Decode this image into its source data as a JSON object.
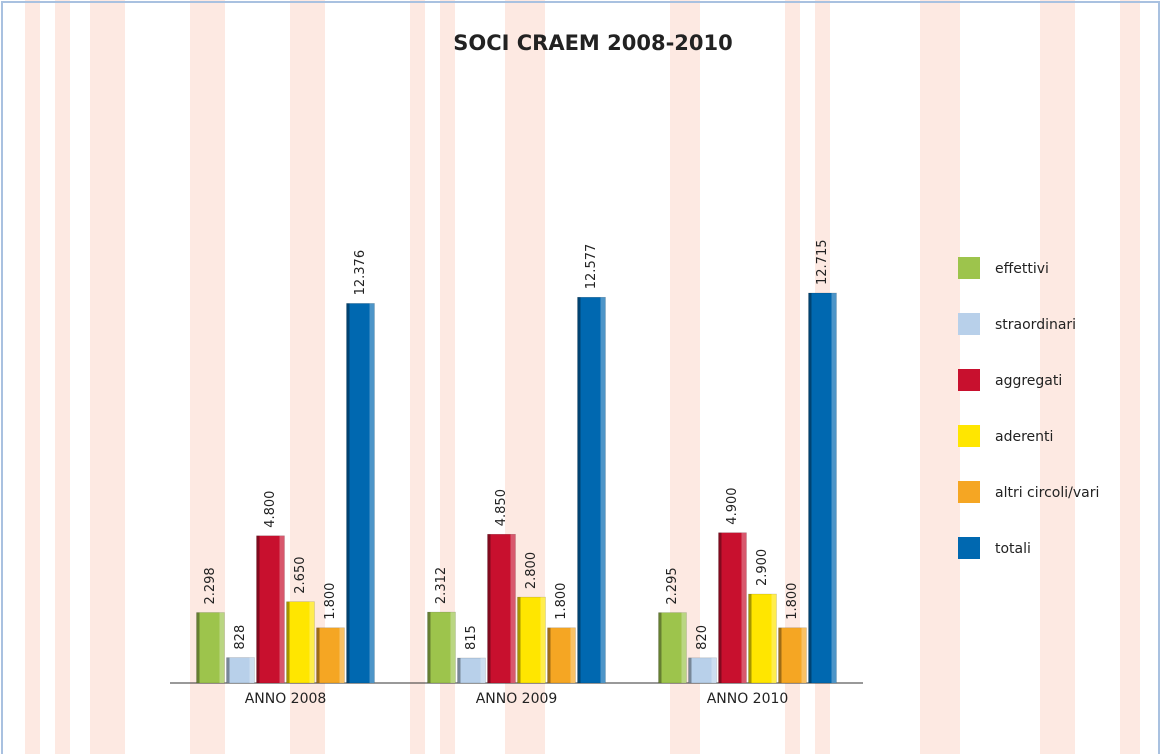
{
  "chart_data": {
    "type": "bar",
    "title": "SOCI CRAEM 2008-2010",
    "categories": [
      "ANNO 2008",
      "ANNO 2009",
      "ANNO 2010"
    ],
    "series": [
      {
        "name": "effettivi",
        "color": "#9dc44c",
        "values": [
          2298,
          2312,
          2295
        ],
        "value_labels": [
          "2.298",
          "2.312",
          "2.295"
        ]
      },
      {
        "name": "straordinari",
        "color": "#b8d0ea",
        "values": [
          828,
          815,
          820
        ],
        "value_labels": [
          "828",
          "815",
          "820"
        ]
      },
      {
        "name": "aggregati",
        "color": "#c8102e",
        "values": [
          4800,
          4850,
          4900
        ],
        "value_labels": [
          "4.800",
          "4.850",
          "4.900"
        ]
      },
      {
        "name": "aderenti",
        "color": "#ffe600",
        "values": [
          2650,
          2800,
          2900
        ],
        "value_labels": [
          "2.650",
          "2.800",
          "2.900"
        ]
      },
      {
        "name": "altri circoli/vari",
        "color": "#f5a623",
        "values": [
          1800,
          1800,
          1800
        ],
        "value_labels": [
          "1.800",
          "1.800",
          "1.800"
        ]
      },
      {
        "name": "totali",
        "color": "#0068b0",
        "values": [
          12376,
          12577,
          12715
        ],
        "value_labels": [
          "12.376",
          "12.577",
          "12.715"
        ]
      }
    ],
    "legend": "right"
  }
}
